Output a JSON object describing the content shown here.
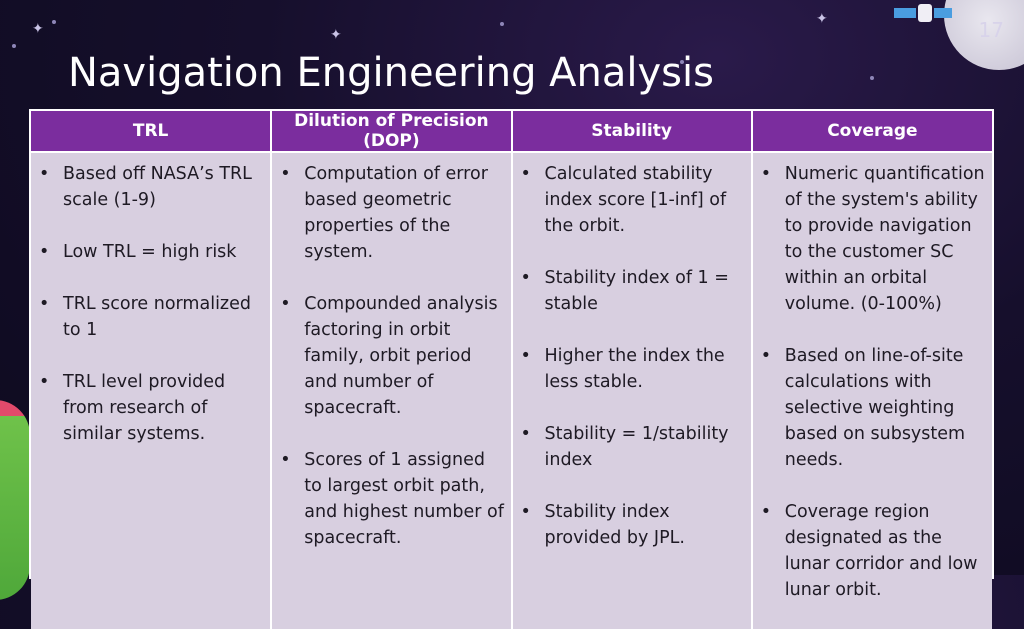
{
  "slide": {
    "number": "17",
    "title": "Navigation Engineering Analysis"
  },
  "table": {
    "columns": [
      {
        "header": "TRL",
        "bullets": [
          "Based off NASA’s TRL scale (1-9)",
          "Low TRL = high risk",
          "TRL score normalized to 1",
          "TRL level provided from research of similar systems."
        ]
      },
      {
        "header": "Dilution of Precision (DOP)",
        "bullets": [
          "Computation of error based  geometric properties of the system.",
          "Compounded analysis factoring in orbit family, orbit period and number of spacecraft.",
          "Scores of 1 assigned to largest orbit path, and highest number of spacecraft."
        ]
      },
      {
        "header": "Stability",
        "bullets": [
          "Calculated stability index score [1-inf] of the orbit.",
          "Stability index of 1 = stable",
          "Higher the index the less stable.",
          "Stability = 1/stability index",
          "Stability index provided by JPL."
        ]
      },
      {
        "header": "Coverage",
        "bullets": [
          "Numeric quantification of the system's ability to provide navigation to the customer SC within an orbital volume. (0-100%)",
          "Based on line-of-site calculations with selective weighting based on subsystem needs.",
          "Coverage region designated as the lunar corridor and low lunar orbit."
        ]
      }
    ]
  }
}
